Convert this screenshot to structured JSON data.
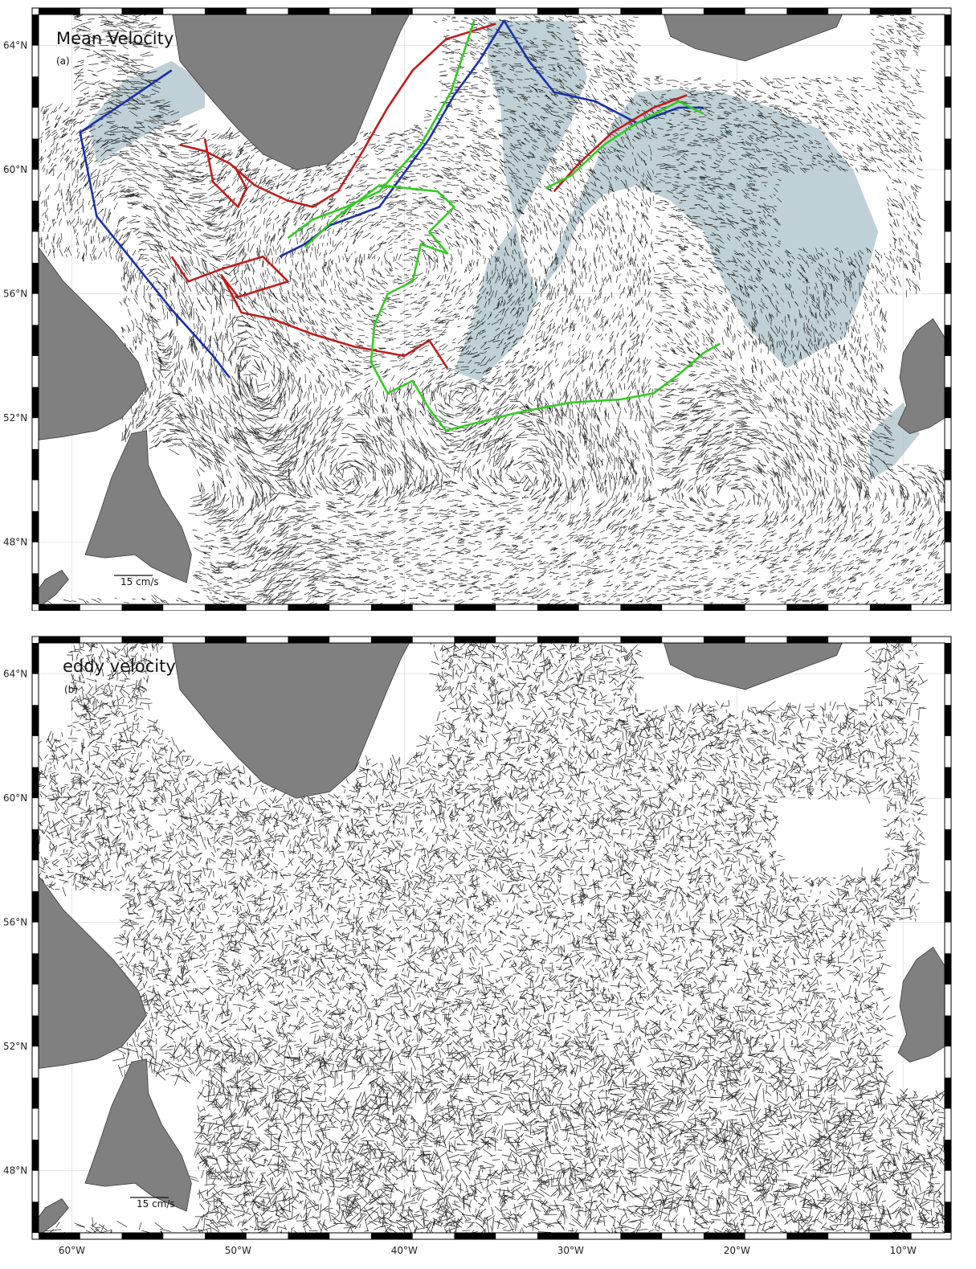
{
  "colors": {
    "land": "#808080",
    "land_edge": "#3a3a3a",
    "shelf": "#a9c2c8",
    "vector": "#111111",
    "frame": "#000000",
    "track_blue": "#1a2fa8",
    "track_red": "#c01c1c",
    "track_green": "#33cc22",
    "grid": "#dddddd"
  },
  "panels": [
    {
      "id": "a",
      "title": "Mean Velocity",
      "tag": "(a)",
      "scale_label": "15 cm/s",
      "field": "mean",
      "lat_ticks": [
        "64°N",
        "60°N",
        "56°N",
        "52°N",
        "48°N"
      ],
      "lon_ticks": [
        "60°W",
        "50°W",
        "40°W",
        "30°W",
        "20°W",
        "10°W"
      ],
      "tracks": [
        {
          "color": "blue"
        },
        {
          "color": "red"
        },
        {
          "color": "green"
        }
      ]
    },
    {
      "id": "b",
      "title": "eddy velocity",
      "tag": "(b)",
      "scale_label": "15 cm/s",
      "field": "eddy",
      "lat_ticks": [
        "64°N",
        "60°N",
        "56°N",
        "52°N",
        "48°N"
      ],
      "lon_ticks": [
        "60°W",
        "50°W",
        "40°W",
        "30°W",
        "20°W",
        "10°W"
      ],
      "tracks": []
    }
  ],
  "chart_data": [
    {
      "type": "vector-field-map",
      "title": "Mean Velocity",
      "panel_label": "(a)",
      "lon_range": [
        -62,
        -7.5
      ],
      "lat_range": [
        46,
        65
      ],
      "lat_ticks": [
        64,
        60,
        56,
        52,
        48
      ],
      "lon_ticks": [
        -60,
        -50,
        -40,
        -30,
        -20,
        -10
      ],
      "scale_vector": {
        "value": 15,
        "unit": "cm/s"
      },
      "tracks": [
        {
          "color": "blue",
          "points": [
            [
              -54,
              63.2
            ],
            [
              -59.5,
              61.2
            ],
            [
              -58.5,
              58.5
            ],
            [
              -57,
              57.5
            ],
            [
              -54,
              55.5
            ],
            [
              -51.5,
              54
            ],
            [
              -50.5,
              53.3
            ]
          ]
        },
        {
          "color": "blue",
          "points": [
            [
              -47.5,
              57.2
            ],
            [
              -46,
              57.6
            ],
            [
              -44.5,
              58.2
            ],
            [
              -41.5,
              58.8
            ],
            [
              -38.5,
              61
            ],
            [
              -37,
              62.4
            ],
            [
              -35.5,
              63.5
            ],
            [
              -34,
              64.8
            ],
            [
              -32.5,
              63.5
            ],
            [
              -31,
              62.5
            ],
            [
              -28.5,
              62.2
            ],
            [
              -26,
              61.5
            ],
            [
              -23.5,
              62
            ],
            [
              -22,
              62
            ]
          ]
        },
        {
          "color": "red",
          "points": [
            [
              -53.5,
              60.8
            ],
            [
              -52,
              60.6
            ],
            [
              -50.5,
              60.2
            ],
            [
              -49,
              59.5
            ],
            [
              -47,
              59
            ],
            [
              -45.5,
              58.8
            ],
            [
              -44,
              59.3
            ],
            [
              -42.5,
              60.6
            ],
            [
              -41,
              62
            ],
            [
              -39.5,
              63.2
            ],
            [
              -37.5,
              64.2
            ],
            [
              -34.5,
              64.7
            ]
          ]
        },
        {
          "color": "red",
          "points": [
            [
              -52,
              61
            ],
            [
              -51.5,
              59.6
            ],
            [
              -50,
              58.8
            ],
            [
              -49.5,
              59.4
            ],
            [
              -50.2,
              60.1
            ]
          ]
        },
        {
          "color": "red",
          "points": [
            [
              -54,
              57.2
            ],
            [
              -53,
              56.4
            ],
            [
              -51,
              56.8
            ],
            [
              -48.5,
              57.2
            ],
            [
              -47,
              56.4
            ],
            [
              -50,
              55.9
            ],
            [
              -51,
              56.6
            ],
            [
              -49.8,
              55.4
            ],
            [
              -48,
              55.2
            ],
            [
              -45.5,
              54.7
            ],
            [
              -43,
              54.3
            ],
            [
              -40,
              54
            ],
            [
              -38.5,
              54.5
            ],
            [
              -37.4,
              53.6
            ]
          ]
        },
        {
          "color": "red",
          "points": [
            [
              -31,
              59.3
            ],
            [
              -29.5,
              60.2
            ],
            [
              -27.5,
              61.2
            ],
            [
              -25,
              62
            ],
            [
              -23,
              62.4
            ]
          ]
        },
        {
          "color": "green",
          "points": [
            [
              -47,
              57.8
            ],
            [
              -45.5,
              58.4
            ],
            [
              -43.5,
              58.8
            ],
            [
              -41.5,
              59.3
            ],
            [
              -39,
              60.8
            ],
            [
              -37.2,
              62.5
            ],
            [
              -35.8,
              64.8
            ]
          ]
        },
        {
          "color": "green",
          "points": [
            [
              -31.5,
              59.4
            ],
            [
              -30,
              59.8
            ],
            [
              -28,
              60.8
            ],
            [
              -26,
              61.5
            ],
            [
              -23.5,
              62.2
            ],
            [
              -22,
              61.8
            ]
          ]
        },
        {
          "color": "green",
          "points": [
            [
              -46,
              57.5
            ],
            [
              -44,
              58.5
            ],
            [
              -41.5,
              59.5
            ],
            [
              -38,
              59.3
            ],
            [
              -37,
              58.8
            ],
            [
              -38.5,
              58
            ],
            [
              -37.4,
              57.3
            ],
            [
              -39,
              57.6
            ],
            [
              -39.5,
              56.4
            ],
            [
              -41,
              56
            ],
            [
              -41.8,
              55
            ],
            [
              -42,
              53.8
            ],
            [
              -41,
              52.8
            ],
            [
              -39.5,
              53.2
            ],
            [
              -38.5,
              52.3
            ],
            [
              -37.5,
              51.6
            ],
            [
              -36,
              51.8
            ],
            [
              -33,
              52.2
            ],
            [
              -30,
              52.5
            ],
            [
              -27,
              52.6
            ],
            [
              -25,
              52.8
            ],
            [
              -23.5,
              53.4
            ],
            [
              -22,
              54.1
            ],
            [
              -21,
              54.4
            ]
          ]
        }
      ]
    },
    {
      "type": "vector-field-map",
      "title": "eddy velocity",
      "panel_label": "(b)",
      "lon_range": [
        -62,
        -7.5
      ],
      "lat_range": [
        46,
        65
      ],
      "lat_ticks": [
        64,
        60,
        56,
        52,
        48
      ],
      "lon_ticks": [
        -60,
        -50,
        -40,
        -30,
        -20,
        -10
      ],
      "scale_vector": {
        "value": 15,
        "unit": "cm/s"
      }
    }
  ]
}
